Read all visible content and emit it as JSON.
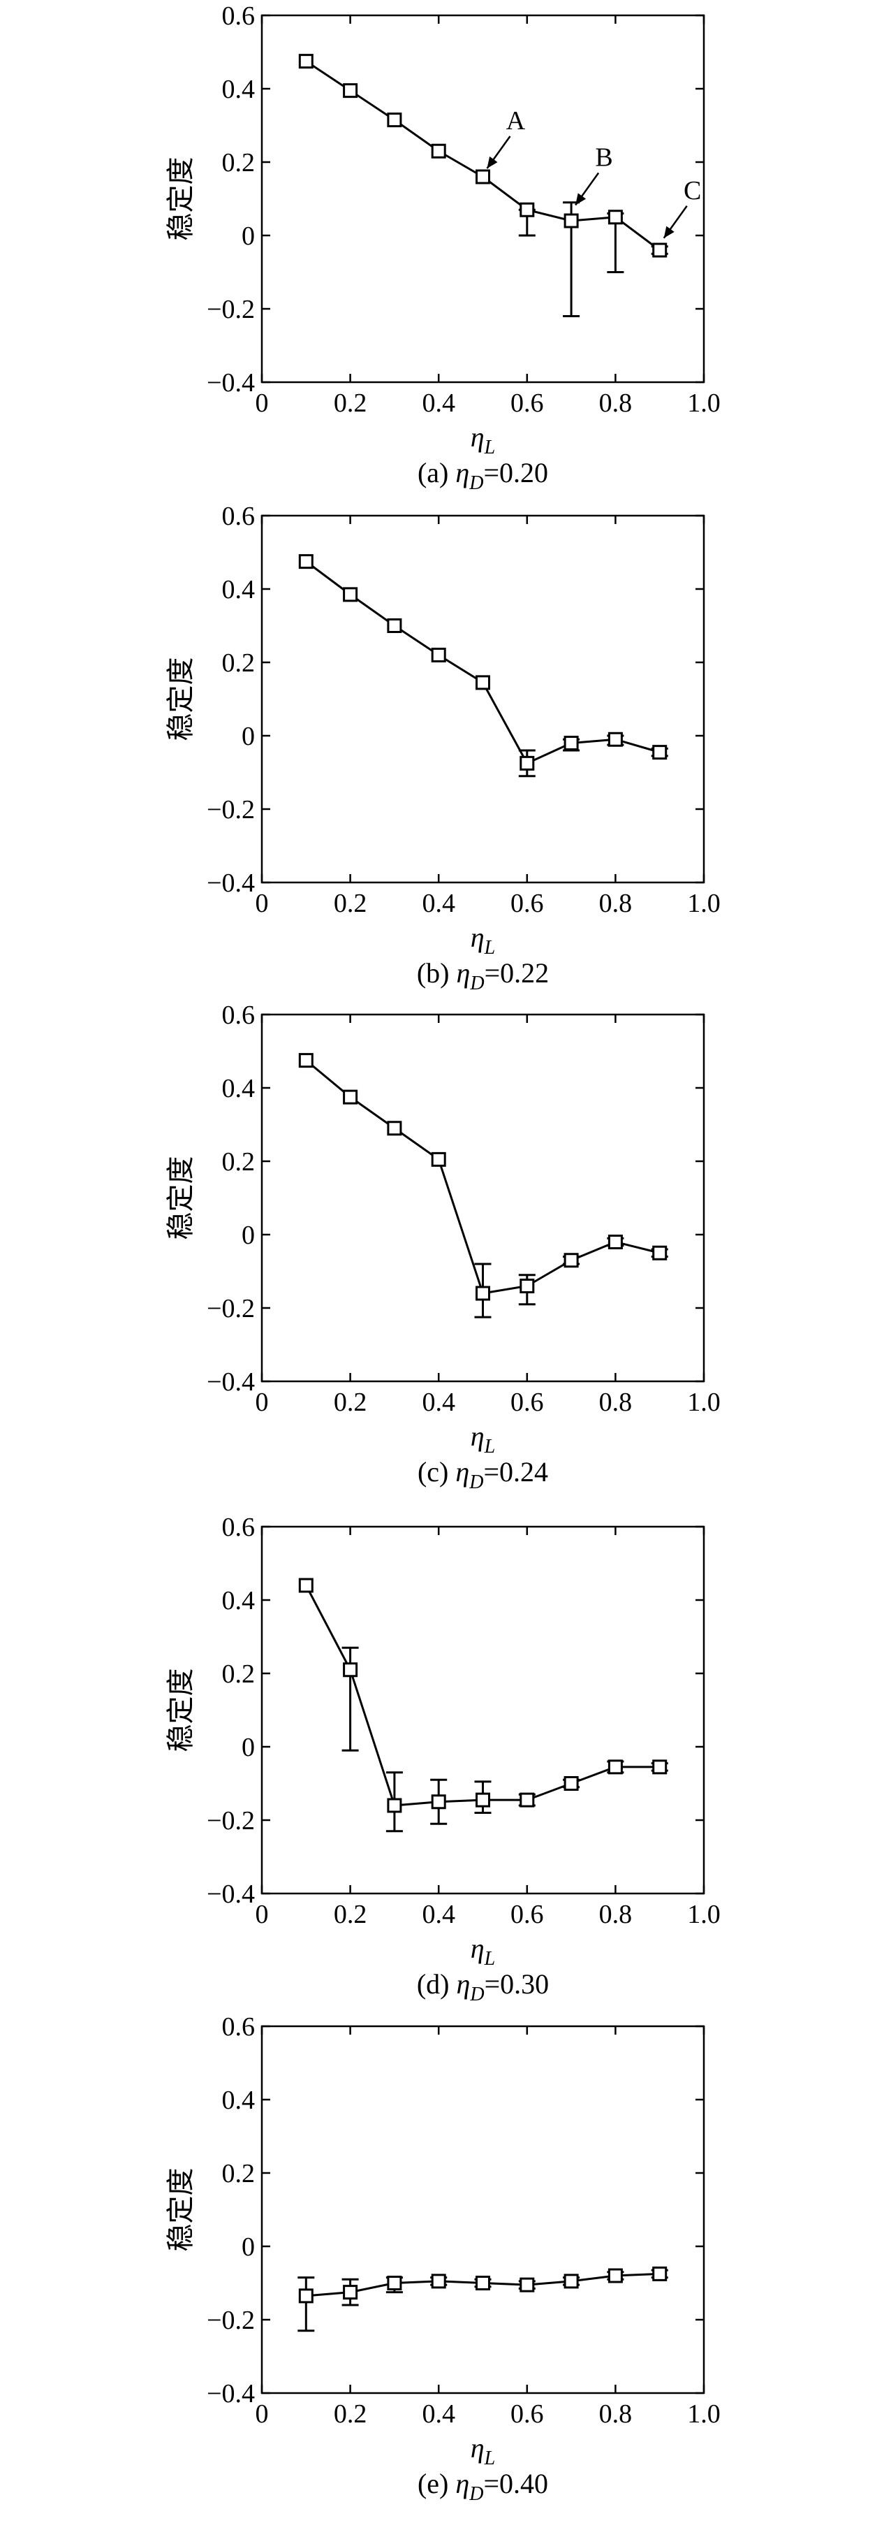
{
  "chart_data": [
    {
      "type": "line",
      "caption": "(a) η_D=0.20",
      "caption_prefix": "(a) ",
      "caption_var": "η",
      "caption_sub": "D",
      "caption_value": "=0.20",
      "xlabel_var": "η",
      "xlabel_sub": "L",
      "ylabel": "稳定度",
      "xlim": [
        0,
        1.0
      ],
      "ylim": [
        -0.4,
        0.6
      ],
      "xticks": [
        "0",
        "0.2",
        "0.4",
        "0.6",
        "0.8",
        "1.0"
      ],
      "yticks": [
        "−0.4",
        "−0.2",
        "0",
        "0.2",
        "0.4",
        "0.6"
      ],
      "x": [
        0.1,
        0.2,
        0.3,
        0.4,
        0.5,
        0.6,
        0.7,
        0.8,
        0.9
      ],
      "y": [
        0.475,
        0.395,
        0.315,
        0.23,
        0.16,
        0.07,
        0.04,
        0.05,
        -0.04
      ],
      "err_low": [
        0.475,
        0.395,
        0.315,
        0.23,
        0.16,
        0.0,
        -0.22,
        -0.1,
        -0.05
      ],
      "err_high": [
        0.475,
        0.395,
        0.315,
        0.23,
        0.16,
        0.07,
        0.09,
        0.06,
        -0.03
      ],
      "annotations": [
        {
          "text": "A",
          "x": 0.5,
          "y": 0.16
        },
        {
          "text": "B",
          "x": 0.7,
          "y": 0.06
        },
        {
          "text": "C",
          "x": 0.9,
          "y": -0.03
        }
      ]
    },
    {
      "type": "line",
      "caption": "(b) η_D=0.22",
      "caption_prefix": "(b) ",
      "caption_var": "η",
      "caption_sub": "D",
      "caption_value": "=0.22",
      "xlabel_var": "η",
      "xlabel_sub": "L",
      "ylabel": "稳定度",
      "xlim": [
        0,
        1.0
      ],
      "ylim": [
        -0.4,
        0.6
      ],
      "xticks": [
        "0",
        "0.2",
        "0.4",
        "0.6",
        "0.8",
        "1.0"
      ],
      "yticks": [
        "−0.4",
        "−0.2",
        "0",
        "0.2",
        "0.4",
        "0.6"
      ],
      "x": [
        0.1,
        0.2,
        0.3,
        0.4,
        0.5,
        0.6,
        0.7,
        0.8,
        0.9
      ],
      "y": [
        0.475,
        0.385,
        0.3,
        0.22,
        0.145,
        -0.075,
        -0.02,
        -0.01,
        -0.045
      ],
      "err_low": [
        0.475,
        0.385,
        0.3,
        0.22,
        0.145,
        -0.11,
        -0.04,
        -0.025,
        -0.055
      ],
      "err_high": [
        0.475,
        0.385,
        0.3,
        0.22,
        0.145,
        -0.04,
        -0.01,
        0.0,
        -0.035
      ],
      "annotations": []
    },
    {
      "type": "line",
      "caption": "(c) η_D=0.24",
      "caption_prefix": "(c) ",
      "caption_var": "η",
      "caption_sub": "D",
      "caption_value": "=0.24",
      "xlabel_var": "η",
      "xlabel_sub": "L",
      "ylabel": "稳定度",
      "xlim": [
        0,
        1.0
      ],
      "ylim": [
        -0.4,
        0.6
      ],
      "xticks": [
        "0",
        "0.2",
        "0.4",
        "0.6",
        "0.8",
        "1.0"
      ],
      "yticks": [
        "−0.4",
        "−0.2",
        "0",
        "0.2",
        "0.4",
        "0.6"
      ],
      "x": [
        0.1,
        0.2,
        0.3,
        0.4,
        0.5,
        0.6,
        0.7,
        0.8,
        0.9
      ],
      "y": [
        0.475,
        0.375,
        0.29,
        0.205,
        -0.16,
        -0.14,
        -0.07,
        -0.02,
        -0.05
      ],
      "err_low": [
        0.475,
        0.375,
        0.29,
        0.205,
        -0.225,
        -0.19,
        -0.08,
        -0.03,
        -0.06
      ],
      "err_high": [
        0.475,
        0.375,
        0.29,
        0.205,
        -0.08,
        -0.11,
        -0.06,
        -0.01,
        -0.04
      ],
      "annotations": []
    },
    {
      "type": "line",
      "caption": "(d) η_D=0.30",
      "caption_prefix": "(d) ",
      "caption_var": "η",
      "caption_sub": "D",
      "caption_value": "=0.30",
      "xlabel_var": "η",
      "xlabel_sub": "L",
      "ylabel": "稳定度",
      "xlim": [
        0,
        1.0
      ],
      "ylim": [
        -0.4,
        0.6
      ],
      "xticks": [
        "0",
        "0.2",
        "0.4",
        "0.6",
        "0.8",
        "1.0"
      ],
      "yticks": [
        "−0.4",
        "−0.2",
        "0",
        "0.2",
        "0.4",
        "0.6"
      ],
      "x": [
        0.1,
        0.2,
        0.3,
        0.4,
        0.5,
        0.6,
        0.7,
        0.8,
        0.9
      ],
      "y": [
        0.44,
        0.21,
        -0.16,
        -0.15,
        -0.145,
        -0.145,
        -0.1,
        -0.055,
        -0.055
      ],
      "err_low": [
        0.44,
        -0.01,
        -0.23,
        -0.21,
        -0.18,
        -0.16,
        -0.11,
        -0.07,
        -0.065
      ],
      "err_high": [
        0.44,
        0.27,
        -0.07,
        -0.09,
        -0.095,
        -0.13,
        -0.09,
        -0.04,
        -0.045
      ],
      "annotations": []
    },
    {
      "type": "line",
      "caption": "(e) η_D=0.40",
      "caption_prefix": "(e) ",
      "caption_var": "η",
      "caption_sub": "D",
      "caption_value": "=0.40",
      "xlabel_var": "η",
      "xlabel_sub": "L",
      "ylabel": "稳定度",
      "xlim": [
        0,
        1.0
      ],
      "ylim": [
        -0.4,
        0.6
      ],
      "xticks": [
        "0",
        "0.2",
        "0.4",
        "0.6",
        "0.8",
        "1.0"
      ],
      "yticks": [
        "−0.4",
        "−0.2",
        "0",
        "0.2",
        "0.4",
        "0.6"
      ],
      "x": [
        0.1,
        0.2,
        0.3,
        0.4,
        0.5,
        0.6,
        0.7,
        0.8,
        0.9
      ],
      "y": [
        -0.135,
        -0.125,
        -0.1,
        -0.095,
        -0.1,
        -0.105,
        -0.095,
        -0.08,
        -0.075
      ],
      "err_low": [
        -0.23,
        -0.16,
        -0.125,
        -0.105,
        -0.11,
        -0.115,
        -0.105,
        -0.09,
        -0.085
      ],
      "err_high": [
        -0.085,
        -0.09,
        -0.085,
        -0.085,
        -0.09,
        -0.095,
        -0.085,
        -0.07,
        -0.065
      ],
      "annotations": []
    }
  ]
}
